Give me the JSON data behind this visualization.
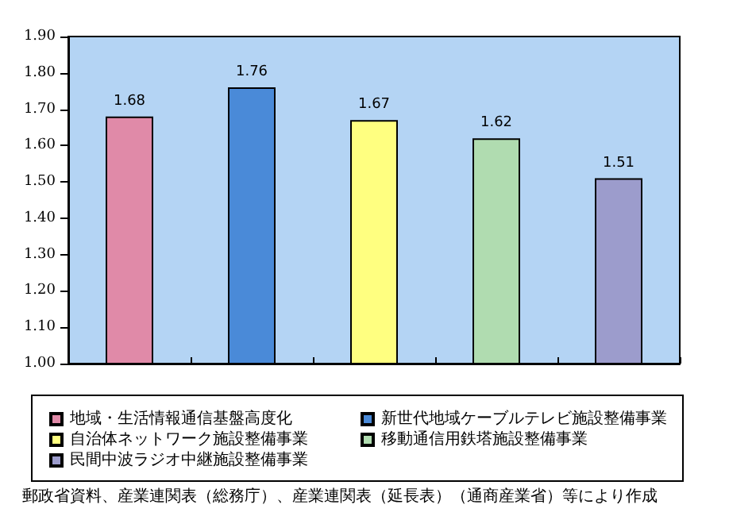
{
  "chart_data": {
    "type": "bar",
    "categories": [
      null,
      null,
      null,
      null,
      null
    ],
    "series": [
      {
        "name": "地域・生活情報通信基盤高度化",
        "color": "#e08aa8",
        "values": [
          1.68,
          null,
          null,
          null,
          null
        ],
        "value_labels": [
          "1.68",
          null,
          null,
          null,
          null
        ]
      },
      {
        "name": "新世代地域ケーブルテレビ施設整備事業",
        "color": "#4a8ad8",
        "values": [
          null,
          1.76,
          null,
          null,
          null
        ],
        "value_labels": [
          null,
          "1.76",
          null,
          null,
          null
        ]
      },
      {
        "name": "自治体ネットワーク施設整備事業",
        "color": "#ffff80",
        "values": [
          null,
          null,
          1.67,
          null,
          null
        ],
        "value_labels": [
          null,
          null,
          "1.67",
          null,
          null
        ]
      },
      {
        "name": "移動通信用鉄塔施設整備事業",
        "color": "#b0dcb0",
        "values": [
          null,
          null,
          null,
          1.62,
          null
        ],
        "value_labels": [
          null,
          null,
          null,
          "1.62",
          null
        ]
      },
      {
        "name": "民間中波ラジオ中継施設整備事業",
        "color": "#9c9ccc",
        "values": [
          null,
          null,
          null,
          null,
          1.51
        ],
        "value_labels": [
          null,
          null,
          null,
          null,
          "1.51"
        ]
      }
    ],
    "ylim": [
      1,
      1.9
    ],
    "yticks": [
      {
        "value": 1,
        "label": "1.00"
      },
      {
        "value": 1.1,
        "label": "1.10"
      },
      {
        "value": 1.2,
        "label": "1.20"
      },
      {
        "value": 1.3,
        "label": "1.30"
      },
      {
        "value": 1.4,
        "label": "1.40"
      },
      {
        "value": 1.5,
        "label": "1.50"
      },
      {
        "value": 1.6,
        "label": "1.60"
      },
      {
        "value": 1.7,
        "label": "1.70"
      },
      {
        "value": 1.8,
        "label": "1.80"
      },
      {
        "value": 1.9,
        "label": "1.90"
      }
    ],
    "grid": false,
    "legend": "bottom",
    "annotations": [
      "郵政省資料、産業連関表（総務庁）、産業連関表（延長表）（通商産業省）等により作成"
    ]
  }
}
